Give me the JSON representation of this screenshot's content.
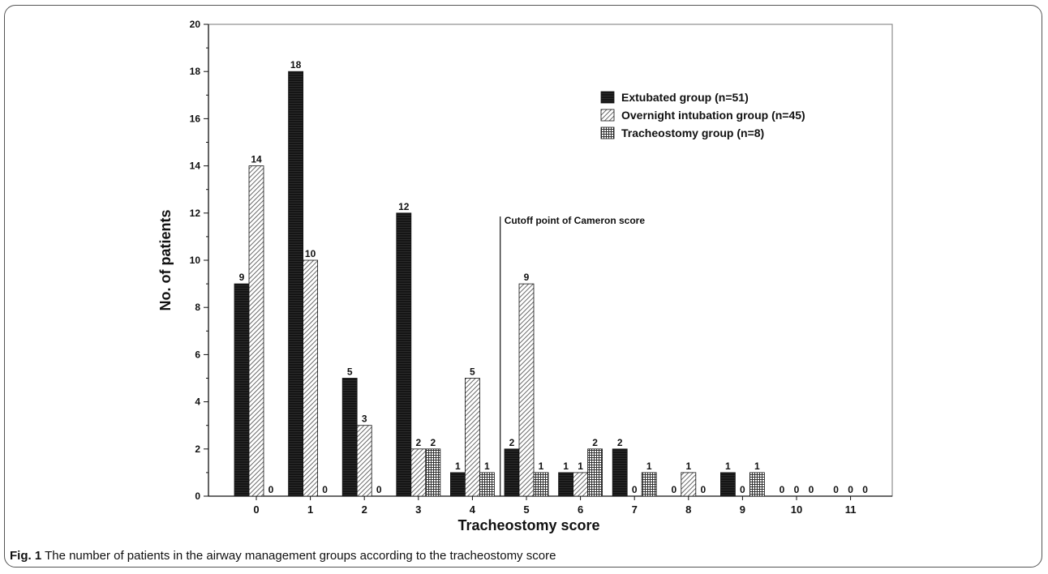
{
  "figure": {
    "caption_label": "Fig. 1",
    "caption_text": " The number of patients in the airway management groups according to the tracheostomy score"
  },
  "chart_data": {
    "type": "bar",
    "title": "",
    "xlabel": "Tracheostomy score",
    "ylabel": "No. of patients",
    "ylim": [
      0,
      20
    ],
    "yticks": [
      0,
      2,
      4,
      6,
      8,
      10,
      12,
      14,
      16,
      18,
      20
    ],
    "categories": [
      "0",
      "1",
      "2",
      "3",
      "4",
      "5",
      "6",
      "7",
      "8",
      "9",
      "10",
      "11"
    ],
    "series": [
      {
        "name": "Extubated group (n=51)",
        "values": [
          9,
          18,
          5,
          12,
          1,
          2,
          1,
          2,
          0,
          1,
          0,
          0
        ],
        "color": "#111111",
        "pattern": "solid"
      },
      {
        "name": "Overnight intubation group (n=45)",
        "values": [
          14,
          10,
          3,
          2,
          5,
          9,
          1,
          0,
          1,
          0,
          0,
          0
        ],
        "color": "#888888",
        "pattern": "diagonal"
      },
      {
        "name": "Tracheostomy group (n=8)",
        "values": [
          0,
          0,
          0,
          2,
          1,
          1,
          2,
          1,
          0,
          1,
          0,
          0
        ],
        "color": "#444444",
        "pattern": "grid"
      }
    ],
    "annotation": {
      "text": "Cutoff point of Cameron score",
      "x_between": [
        "4",
        "5"
      ]
    },
    "legend_position": "top-right",
    "grid": false
  }
}
